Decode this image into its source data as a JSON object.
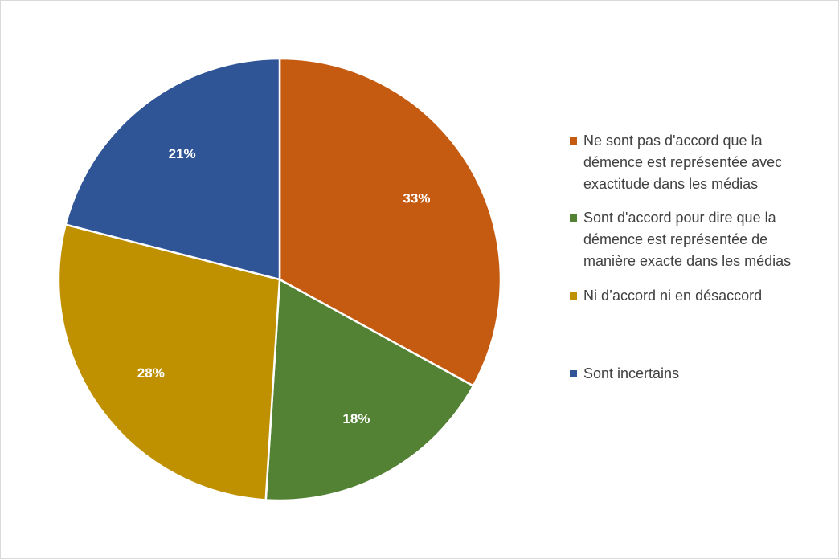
{
  "chart_data": {
    "type": "pie",
    "title": "",
    "start_angle_deg": 0,
    "direction": "clockwise",
    "legend_position": "right",
    "slices": [
      {
        "label": "Ne sont pas d'accord que la\ndémence est représentée avec\nexactitude dans les médias",
        "value": 33,
        "display": "33%",
        "color": "#C55A11"
      },
      {
        "label": "Sont d'accord pour dire que la\ndémence est représentée de\nmanière exacte dans les médias",
        "value": 18,
        "display": "18%",
        "color": "#548235"
      },
      {
        "label": "Ni d’accord ni en désaccord",
        "value": 28,
        "display": "28%",
        "color": "#BF9000"
      },
      {
        "label": "Sont incertains",
        "value": 21,
        "display": "21%",
        "color": "#2F5597"
      }
    ]
  }
}
